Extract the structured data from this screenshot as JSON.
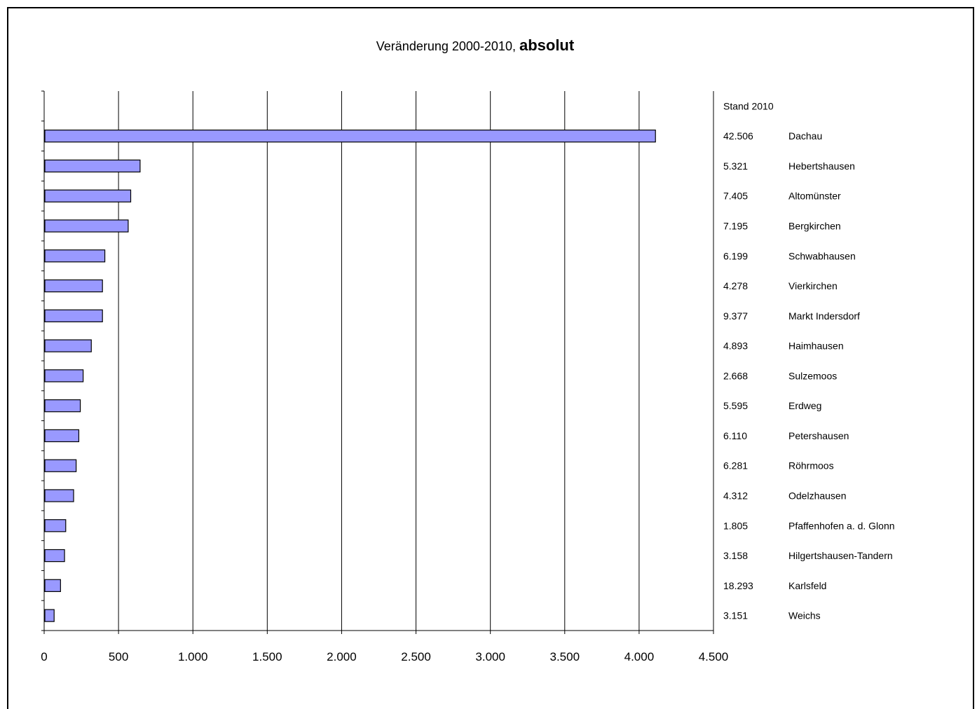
{
  "chart_data": {
    "type": "bar",
    "orientation": "horizontal",
    "title": "Veränderung 2000-2010,",
    "title_bold": "absolut",
    "header_label": "Stand 2010",
    "categories": [
      "Dachau",
      "Hebertshausen",
      "Altomünster",
      "Bergkirchen",
      "Schwabhausen",
      "Vierkirchen",
      "Markt Indersdorf",
      "Haimhausen",
      "Sulzemoos",
      "Erdweg",
      "Petershausen",
      "Röhrmoos",
      "Odelzhausen",
      "Pfaffenhofen a. d. Glonn",
      "Hilgertshausen-Tandern",
      "Karlsfeld",
      "Weichs"
    ],
    "stand_2010": [
      "42.506",
      "5.321",
      "7.405",
      "7.195",
      "6.199",
      "4.278",
      "9.377",
      "4.893",
      "2.668",
      "5.595",
      "6.110",
      "6.281",
      "4.312",
      "1.805",
      "3.158",
      "18.293",
      "3.151"
    ],
    "values": [
      4110,
      645,
      582,
      565,
      408,
      392,
      392,
      317,
      262,
      243,
      233,
      215,
      198,
      145,
      137,
      110,
      67
    ],
    "xlim": [
      0,
      4500
    ],
    "x_ticks": [
      0,
      500,
      1000,
      1500,
      2000,
      2500,
      3000,
      3500,
      4000,
      4500
    ],
    "x_tick_labels": [
      "0",
      "500",
      "1.000",
      "1.500",
      "2.000",
      "2.500",
      "3.000",
      "3.500",
      "4.000",
      "4.500"
    ],
    "grid": "vertical",
    "legend": "none",
    "bar_color": "#9999ff",
    "bar_edge_color": "#000000"
  }
}
